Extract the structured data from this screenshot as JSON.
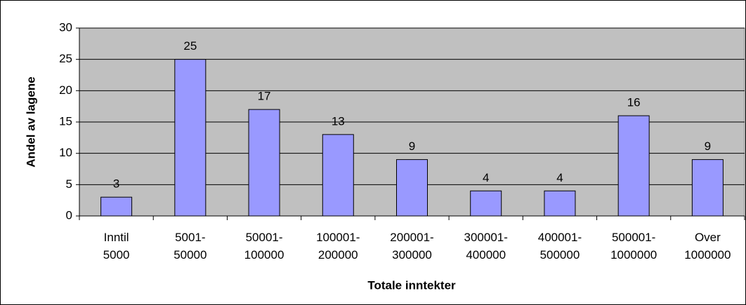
{
  "chart_data": {
    "type": "bar",
    "categories": [
      "Inntil\n5000",
      "5001-\n50000",
      "50001-\n100000",
      "100001-\n200000",
      "200001-\n300000",
      "300001-\n400000",
      "400001-\n500000",
      "500001-\n1000000",
      "Over\n1000000"
    ],
    "values": [
      3,
      25,
      17,
      13,
      9,
      4,
      4,
      16,
      9
    ],
    "color": "#9999ff",
    "x_label": "Totale inntekter",
    "y_label": "Andel av lagene",
    "ylim": [
      0,
      30
    ],
    "yticks": [
      0,
      5,
      10,
      15,
      20,
      25,
      30
    ],
    "grid": true
  }
}
